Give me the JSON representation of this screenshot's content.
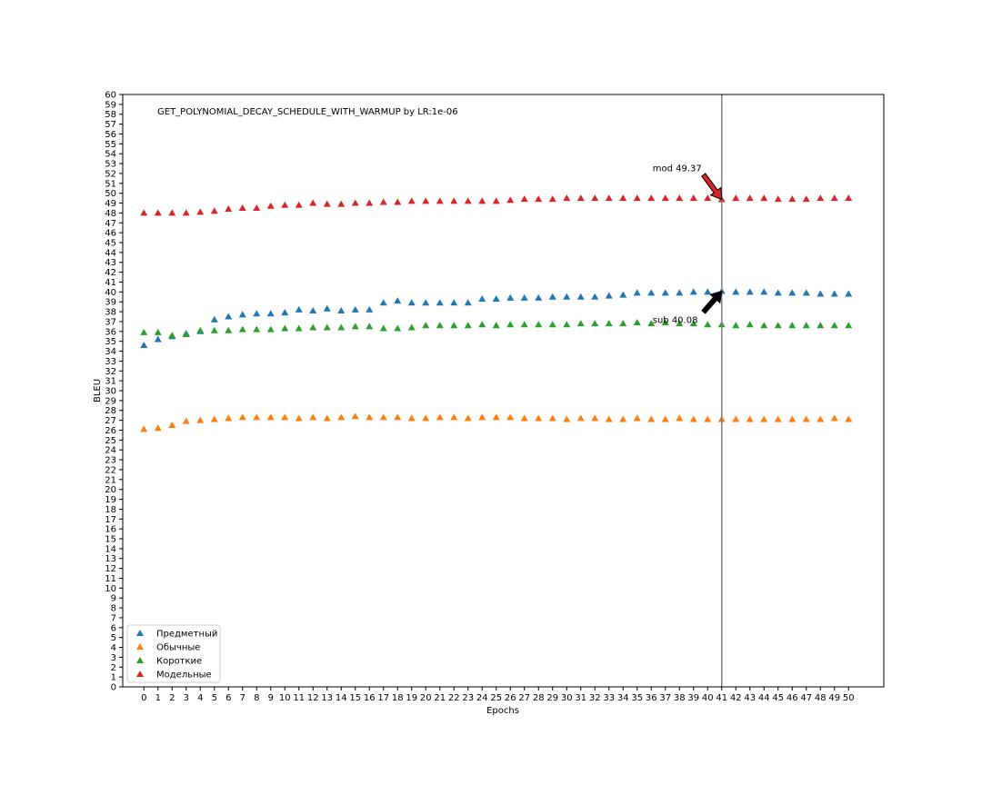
{
  "chart_data": {
    "type": "scatter",
    "title": "GET_POLYNOMIAL_DECAY_SCHEDULE_WITH_WARMUP by LR:1e-06",
    "xlabel": "Epochs",
    "ylabel": "BLEU",
    "xlim": [
      -1.5,
      52.5
    ],
    "ylim": [
      0,
      60
    ],
    "x": [
      0,
      1,
      2,
      3,
      4,
      5,
      6,
      7,
      8,
      9,
      10,
      11,
      12,
      13,
      14,
      15,
      16,
      17,
      18,
      19,
      20,
      21,
      22,
      23,
      24,
      25,
      26,
      27,
      28,
      29,
      30,
      31,
      32,
      33,
      34,
      35,
      36,
      37,
      38,
      39,
      40,
      41,
      42,
      43,
      44,
      45,
      46,
      47,
      48,
      49,
      50
    ],
    "grid": false,
    "legend_position": "lower-left",
    "marker": "triangle-up",
    "series": [
      {
        "name": "Предметный",
        "color": "#1f77b4",
        "values": [
          34.6,
          35.2,
          35.5,
          35.8,
          36.0,
          37.2,
          37.5,
          37.7,
          37.8,
          37.8,
          37.9,
          38.2,
          38.1,
          38.3,
          38.1,
          38.2,
          38.2,
          38.9,
          39.1,
          38.9,
          38.9,
          38.9,
          38.9,
          38.9,
          39.3,
          39.3,
          39.4,
          39.4,
          39.4,
          39.5,
          39.5,
          39.5,
          39.5,
          39.6,
          39.7,
          39.9,
          39.9,
          39.9,
          39.9,
          40.0,
          40.0,
          40.08,
          40.0,
          40.0,
          40.0,
          39.9,
          39.9,
          39.9,
          39.8,
          39.8,
          39.8
        ]
      },
      {
        "name": "Обычные",
        "color": "#ff7f0e",
        "values": [
          26.1,
          26.2,
          26.5,
          26.9,
          27.0,
          27.1,
          27.2,
          27.3,
          27.3,
          27.3,
          27.3,
          27.2,
          27.3,
          27.2,
          27.3,
          27.4,
          27.3,
          27.3,
          27.3,
          27.2,
          27.2,
          27.3,
          27.3,
          27.2,
          27.3,
          27.3,
          27.3,
          27.2,
          27.2,
          27.2,
          27.1,
          27.2,
          27.2,
          27.1,
          27.1,
          27.2,
          27.1,
          27.1,
          27.2,
          27.1,
          27.1,
          27.1,
          27.1,
          27.1,
          27.1,
          27.1,
          27.1,
          27.1,
          27.1,
          27.2,
          27.1
        ]
      },
      {
        "name": "Короткие",
        "color": "#2ca02c",
        "values": [
          35.9,
          35.9,
          35.6,
          35.7,
          36.1,
          36.1,
          36.1,
          36.2,
          36.2,
          36.2,
          36.3,
          36.3,
          36.4,
          36.4,
          36.4,
          36.5,
          36.5,
          36.3,
          36.3,
          36.4,
          36.6,
          36.6,
          36.6,
          36.6,
          36.7,
          36.6,
          36.7,
          36.7,
          36.7,
          36.7,
          36.7,
          36.8,
          36.8,
          36.8,
          36.8,
          36.9,
          36.8,
          36.9,
          36.8,
          36.8,
          36.7,
          36.7,
          36.6,
          36.7,
          36.6,
          36.6,
          36.6,
          36.6,
          36.6,
          36.6,
          36.6
        ]
      },
      {
        "name": "Модельные",
        "color": "#d62728",
        "values": [
          48.0,
          48.0,
          48.0,
          48.0,
          48.1,
          48.2,
          48.4,
          48.5,
          48.5,
          48.7,
          48.8,
          48.8,
          49.0,
          48.9,
          48.9,
          49.0,
          49.0,
          49.1,
          49.1,
          49.2,
          49.2,
          49.2,
          49.2,
          49.2,
          49.2,
          49.2,
          49.3,
          49.4,
          49.4,
          49.4,
          49.5,
          49.5,
          49.5,
          49.5,
          49.5,
          49.5,
          49.5,
          49.5,
          49.5,
          49.5,
          49.5,
          49.37,
          49.5,
          49.5,
          49.5,
          49.4,
          49.4,
          49.4,
          49.5,
          49.5,
          49.5
        ]
      }
    ],
    "vline_x": 41,
    "annotations": [
      {
        "text": "mod 49.37",
        "x": 41,
        "y": 49.37,
        "color": "#d62728",
        "position": "upper-left"
      },
      {
        "text": "sub 40.08",
        "x": 41,
        "y": 40.08,
        "color": "#000000",
        "position": "lower-left"
      }
    ]
  }
}
